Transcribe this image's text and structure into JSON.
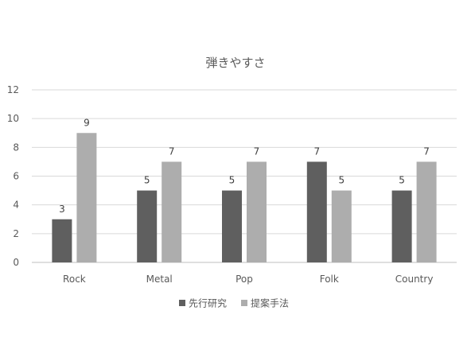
{
  "chart_data": {
    "type": "bar",
    "title": "弾きやすさ",
    "xlabel": "",
    "ylabel": "",
    "categories": [
      "Rock",
      "Metal",
      "Pop",
      "Folk",
      "Country"
    ],
    "series": [
      {
        "name": "先行研究",
        "values": [
          3,
          5,
          5,
          7,
          5
        ],
        "color": "#5f5f5f"
      },
      {
        "name": "提案手法",
        "values": [
          9,
          7,
          7,
          5,
          7
        ],
        "color": "#adadad"
      }
    ],
    "ylim": [
      0,
      12
    ],
    "yticks": [
      0,
      2,
      4,
      6,
      8,
      10,
      12
    ],
    "grid": true,
    "legend_position": "bottom",
    "data_labels": true
  }
}
